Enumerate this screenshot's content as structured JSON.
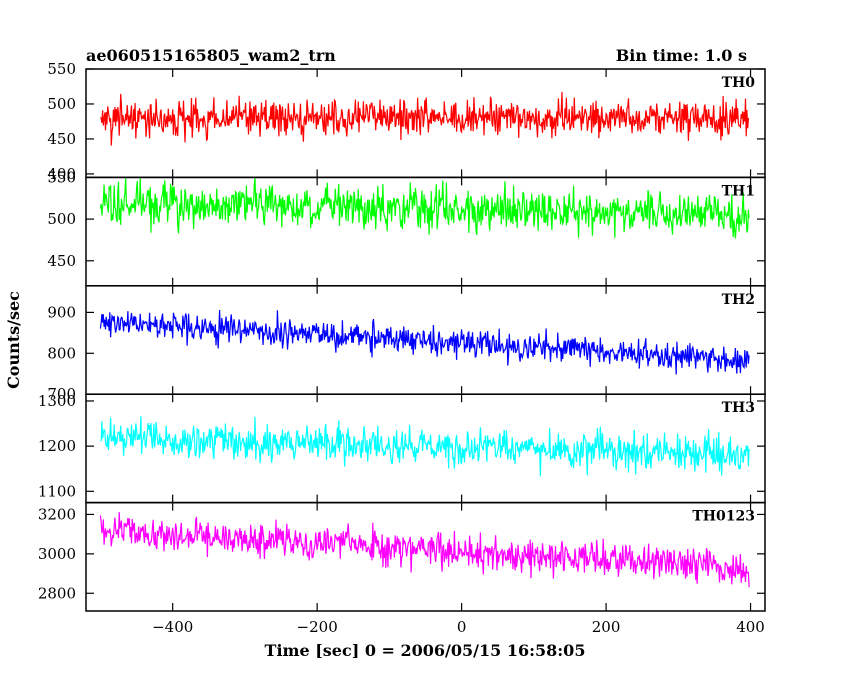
{
  "chart_data": {
    "type": "line",
    "title": "ae060515165805_wam2_trn",
    "bin_time_label": "Bin time: 1.0 s",
    "xlabel": "Time [sec] 0 = 2006/05/15 16:58:05",
    "ylabel": "Counts/sec",
    "xlim": [
      -520,
      420
    ],
    "x_ticks": [
      -400,
      -200,
      0,
      200,
      400
    ],
    "x_range": [
      -500,
      398
    ],
    "panels": [
      {
        "name": "TH0",
        "color": "#ff0000",
        "ylim": [
          395,
          550
        ],
        "y_ticks": [
          400,
          450,
          500,
          550
        ],
        "level_start": 480,
        "level_end": 480,
        "noise": 22
      },
      {
        "name": "TH1",
        "color": "#00ff00",
        "ylim": [
          420,
          550
        ],
        "y_ticks": [
          450,
          500,
          550
        ],
        "level_start": 520,
        "level_end": 505,
        "noise": 22
      },
      {
        "name": "TH2",
        "color": "#0000ff",
        "ylim": [
          700,
          965
        ],
        "y_ticks": [
          700,
          800,
          900
        ],
        "level_start": 880,
        "level_end": 780,
        "noise": 28
      },
      {
        "name": "TH3",
        "color": "#00ffff",
        "ylim": [
          1075,
          1315
        ],
        "y_ticks": [
          1100,
          1200,
          1300
        ],
        "level_start": 1220,
        "level_end": 1180,
        "noise": 35
      },
      {
        "name": "TH0123",
        "color": "#ff00ff",
        "ylim": [
          2710,
          3260
        ],
        "y_ticks": [
          2800,
          3000,
          3200
        ],
        "level_start": 3120,
        "level_end": 2930,
        "noise": 70
      }
    ]
  }
}
